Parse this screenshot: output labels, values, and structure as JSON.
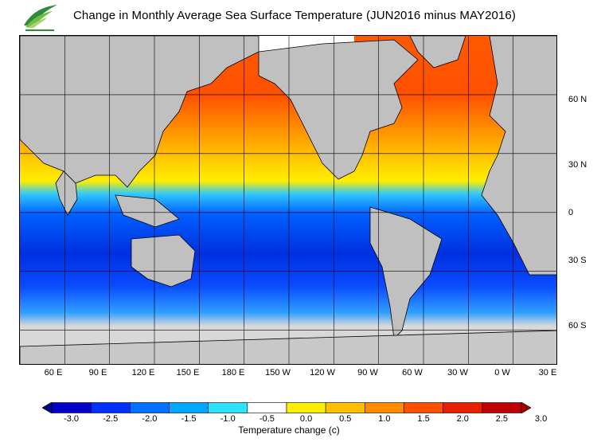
{
  "header": {
    "title": "Change in Monthly Average Sea Surface Temperature (JUN2016 minus MAY2016)"
  },
  "logo": {
    "icon": "hko-leaf-logo",
    "colors": [
      "#2e8b3d",
      "#6cbf43",
      "#a6d56b"
    ]
  },
  "map": {
    "projection": "equirectangular",
    "lon_range": [
      30,
      390
    ],
    "lat_range": [
      -78,
      90
    ],
    "land_color": "#c0c0c0",
    "no_data_color": "#d8d8d8",
    "x_ticks": [
      "60 E",
      "90 E",
      "120 E",
      "150 E",
      "180 E",
      "150 W",
      "120 W",
      "90 W",
      "60 W",
      "30 W",
      "0 W",
      "30 E"
    ],
    "y_ticks": [
      "60 N",
      "30 N",
      "0",
      "30 S",
      "60 S"
    ]
  },
  "colorbar": {
    "title": "Temperature change  (c)",
    "labels": [
      "-3.0",
      "-2.5",
      "-2.0",
      "-1.5",
      "-1.0",
      "-0.5",
      "0.0",
      "0.5",
      "1.0",
      "1.5",
      "2.0",
      "2.5",
      "3.0"
    ],
    "colors": [
      "#000080",
      "#0000c8",
      "#0030ff",
      "#0070ff",
      "#00a8ff",
      "#30e0ff",
      "#ffffff",
      "#ffee00",
      "#ffc000",
      "#ff8c00",
      "#ff5000",
      "#e82000",
      "#c00000",
      "#a00000"
    ]
  }
}
